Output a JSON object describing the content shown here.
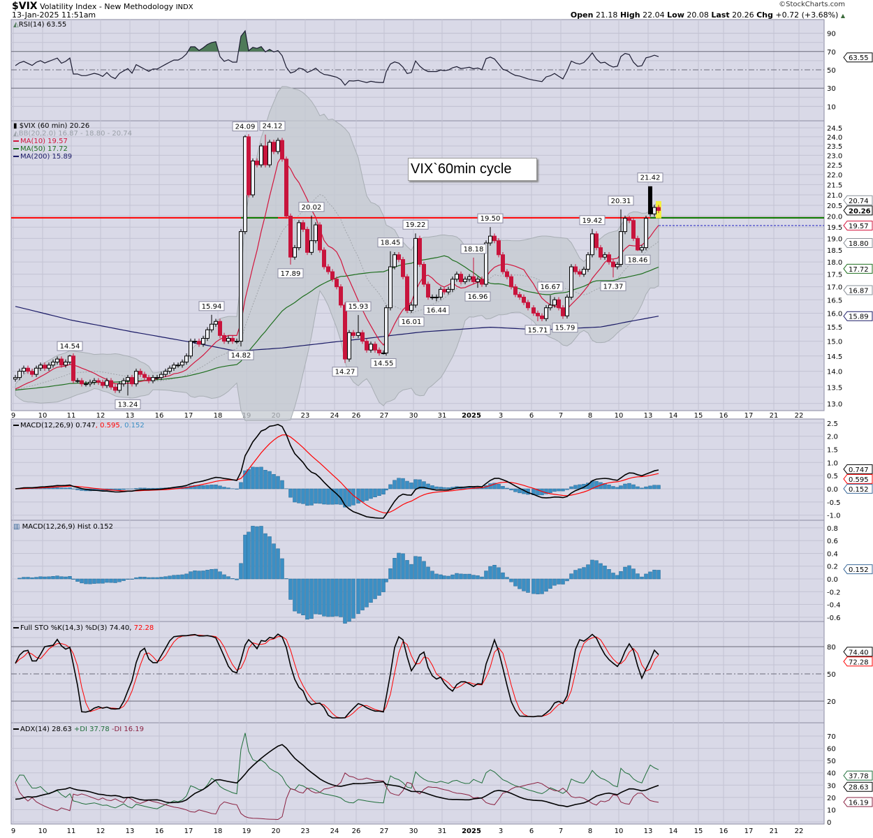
{
  "header": {
    "symbol": "$VIX",
    "name": "Volatility Index - New Methodology",
    "exchange": "INDX",
    "datetime": "13-Jan-2025 11:51am",
    "watermark": "©StockCharts.com",
    "open_label": "Open",
    "open": "21.18",
    "high_label": "High",
    "high": "22.04",
    "low_label": "Low",
    "low": "20.08",
    "last_label": "Last",
    "last": "20.26",
    "chg_label": "Chg",
    "chg": "+0.72 (+3.68%)",
    "chg_icon": "triangle-up-icon"
  },
  "annotation_note": "VIX`60min cycle",
  "legends": {
    "rsi": "RSI(14) 63.55",
    "price": "$VIX (60 min) 20.26",
    "bb": "BB(20,2.0) 16.87 - 18.80 - 20.74",
    "ma10": "MA(10) 19.57",
    "ma50": "MA(50) 17.72",
    "ma200": "MA(200) 15.89",
    "macd_main": "MACD(12,26,9) 0.747",
    "macd_signal": ", 0.595",
    "macd_hist": ", 0.152",
    "hist": "MACD(12,26,9) Hist 0.152",
    "sto_main": "Full STO %K(14,3) %D(3) 74.40,",
    "sto_d": " 72.28",
    "adx": "ADX(14) 28.63",
    "pdi": "+DI 37.78",
    "mdi": "-DI 16.19"
  },
  "colors": {
    "panel_bg": "#d9d9e7",
    "grid": "#c3c3d3",
    "up": "#000000",
    "down": "#c8143c",
    "ma10": "#d2143c",
    "ma50": "#1e6e1e",
    "ma200": "#1a1a66",
    "bb_fill": "#c4cad0",
    "macd": "#000000",
    "signal": "#ff0000",
    "hist": "#3b8fc4",
    "pdi": "#1f6e3a",
    "mdi": "#8a2040",
    "level_line": "#ff0000",
    "level_line_alt": "#008000",
    "rsi_fill": "#4e7a58"
  },
  "axes": {
    "price_ticks": [
      "24.5",
      "24.0",
      "23.5",
      "23.0",
      "22.5",
      "22.0",
      "21.5",
      "21.0",
      "20.5",
      "20.0",
      "19.5",
      "19.0",
      "18.5",
      "18.0",
      "17.5",
      "17.0",
      "16.5",
      "16.0",
      "15.5",
      "15.0",
      "14.5",
      "14.0",
      "13.5",
      "13.0"
    ],
    "rsi_ticks": [
      "90",
      "70",
      "50",
      "30",
      "10"
    ],
    "macd_ticks": [
      "2.5",
      "2.0",
      "1.5",
      "1.0",
      "0.5",
      "0.0",
      "-0.5",
      "-1.0"
    ],
    "hist_ticks": [
      "0.8",
      "0.6",
      "0.4",
      "0.2",
      "0.0",
      "-0.2",
      "-0.4",
      "-0.6"
    ],
    "sto_ticks": [
      "80",
      "50",
      "20"
    ],
    "adx_ticks": [
      "70",
      "60",
      "50",
      "40",
      "30",
      "20",
      "10",
      "0"
    ],
    "date_labels": [
      "9",
      "10",
      "11",
      "12",
      "13",
      "16",
      "17",
      "18",
      "19",
      "20",
      "23",
      "24",
      "26",
      "27",
      "30",
      "31",
      "2025",
      "3",
      "6",
      "7",
      "8",
      "10",
      "13",
      "14",
      "15",
      "16",
      "17",
      "21",
      "22"
    ]
  },
  "value_tags": {
    "rsi": [
      {
        "text": "63.55",
        "value": 63.55,
        "color": "#000000"
      }
    ],
    "price": [
      {
        "text": "20.74",
        "value": 20.74,
        "color": "#8a9098"
      },
      {
        "text": "20.26",
        "value": 20.26,
        "color": "#000000",
        "bold": true
      },
      {
        "text": "19.57",
        "value": 19.57,
        "color": "#d2143c"
      },
      {
        "text": "18.80",
        "value": 18.8,
        "color": "#8a9098"
      },
      {
        "text": "17.72",
        "value": 17.72,
        "color": "#1e6e1e"
      },
      {
        "text": "16.87",
        "value": 16.87,
        "color": "#8a9098"
      },
      {
        "text": "15.89",
        "value": 15.89,
        "color": "#1a1a66"
      }
    ],
    "macd": [
      {
        "text": "0.747",
        "value": 0.747,
        "color": "#000000"
      },
      {
        "text": "0.595",
        "value": 0.595,
        "color": "#ff0000"
      },
      {
        "text": "0.152",
        "value": 0.152,
        "color": "#3b6a9a"
      }
    ],
    "hist": [
      {
        "text": "0.152",
        "value": 0.152,
        "color": "#3b6a9a"
      }
    ],
    "sto": [
      {
        "text": "72.28",
        "value": 72.28,
        "color": "#ff0000"
      },
      {
        "text": "74.40",
        "value": 74.4,
        "color": "#000000"
      }
    ],
    "adx": [
      {
        "text": "37.78",
        "value": 37.78,
        "color": "#1f6e3a"
      },
      {
        "text": "28.63",
        "value": 28.63,
        "color": "#000000"
      },
      {
        "text": "16.19",
        "value": 16.19,
        "color": "#8a2040"
      }
    ]
  },
  "chart_data": {
    "type": "line",
    "title": "$VIX (60 min)",
    "interval": "60 min",
    "ylim": [
      13.0,
      24.5
    ],
    "yscale": "log",
    "days": [
      {
        "label": "Dec 9",
        "bars": 7
      },
      {
        "label": "Dec 10",
        "bars": 7
      },
      {
        "label": "Dec 11",
        "bars": 7
      },
      {
        "label": "Dec 12",
        "bars": 7
      },
      {
        "label": "Dec 13",
        "bars": 7
      },
      {
        "label": "Dec 16",
        "bars": 7
      },
      {
        "label": "Dec 17",
        "bars": 7
      },
      {
        "label": "Dec 18",
        "bars": 7
      },
      {
        "label": "Dec 19",
        "bars": 7
      },
      {
        "label": "Dec 20",
        "bars": 7
      },
      {
        "label": "Dec 23",
        "bars": 7
      },
      {
        "label": "Dec 24",
        "bars": 5
      },
      {
        "label": "Dec 26",
        "bars": 7
      },
      {
        "label": "Dec 27",
        "bars": 7
      },
      {
        "label": "Dec 30",
        "bars": 7
      },
      {
        "label": "Dec 31",
        "bars": 7
      },
      {
        "label": "Jan 2",
        "bars": 7
      },
      {
        "label": "Jan 3",
        "bars": 7
      },
      {
        "label": "Jan 6",
        "bars": 7
      },
      {
        "label": "Jan 7",
        "bars": 7
      },
      {
        "label": "Jan 8",
        "bars": 7
      },
      {
        "label": "Jan 10",
        "bars": 7
      },
      {
        "label": "Jan 13",
        "bars": 3
      }
    ],
    "closes": [
      13.8,
      14.0,
      14.1,
      14.0,
      13.9,
      14.1,
      14.2,
      14.1,
      14.2,
      14.3,
      14.4,
      14.2,
      14.3,
      14.5,
      13.7,
      13.7,
      13.6,
      13.6,
      13.65,
      13.7,
      13.65,
      13.55,
      13.7,
      13.5,
      13.4,
      13.6,
      13.7,
      13.8,
      13.6,
      14.0,
      13.9,
      13.8,
      13.7,
      13.8,
      13.8,
      13.9,
      14.0,
      14.1,
      14.2,
      14.2,
      14.3,
      14.5,
      15.0,
      15.0,
      14.9,
      15.1,
      15.4,
      15.6,
      15.7,
      15.2,
      15.0,
      15.1,
      15.0,
      15.0,
      19.3,
      24.0,
      21.0,
      22.7,
      22.5,
      23.5,
      22.5,
      23.7,
      23.2,
      23.8,
      22.8,
      20.0,
      18.2,
      18.6,
      19.7,
      19.4,
      18.4,
      18.9,
      19.6,
      18.5,
      17.8,
      17.6,
      17.3,
      17.0,
      16.3,
      14.4,
      15.3,
      15.2,
      15.3,
      15.0,
      14.7,
      14.9,
      14.7,
      14.6,
      14.6,
      16.2,
      17.8,
      18.3,
      18.1,
      17.4,
      16.1,
      16.3,
      19.0,
      17.9,
      17.1,
      16.6,
      16.6,
      16.6,
      16.9,
      16.8,
      16.9,
      17.3,
      17.5,
      17.2,
      17.3,
      17.4,
      17.2,
      17.3,
      17.1,
      18.8,
      19.1,
      18.9,
      18.3,
      17.6,
      17.4,
      17.0,
      16.7,
      16.6,
      16.4,
      16.2,
      16.0,
      15.9,
      15.8,
      16.2,
      16.3,
      16.5,
      16.2,
      15.9,
      16.6,
      17.8,
      17.6,
      17.5,
      17.7,
      18.3,
      19.2,
      18.6,
      18.2,
      18.3,
      18.0,
      17.8,
      17.9,
      19.3,
      19.9,
      19.8,
      19.0,
      18.5,
      18.6,
      19.9,
      20.1,
      20.4,
      20.26
    ],
    "open_overrides": {
      "152": 21.4
    },
    "point_labels": [
      {
        "i": 13,
        "v": 14.54,
        "text": "14.54",
        "pos": "above"
      },
      {
        "i": 27,
        "v": 13.24,
        "text": "13.24",
        "pos": "below"
      },
      {
        "i": 47,
        "v": 15.94,
        "text": "15.94",
        "pos": "above"
      },
      {
        "i": 54,
        "v": 14.82,
        "text": "14.82",
        "pos": "below"
      },
      {
        "i": 55,
        "v": 24.09,
        "text": "24.09",
        "pos": "above"
      },
      {
        "i": 60,
        "v": 24.12,
        "text": "24.12",
        "pos": "above"
      },
      {
        "i": 66,
        "v": 17.89,
        "text": "17.89",
        "pos": "below"
      },
      {
        "i": 71,
        "v": 20.02,
        "text": "20.02",
        "pos": "above"
      },
      {
        "i": 79,
        "v": 14.27,
        "text": "14.27",
        "pos": "below"
      },
      {
        "i": 82,
        "v": 15.93,
        "text": "15.93",
        "pos": "above"
      },
      {
        "i": 88,
        "v": 14.55,
        "text": "14.55",
        "pos": "below"
      },
      {
        "i": 90,
        "v": 18.45,
        "text": "18.45",
        "pos": "above"
      },
      {
        "i": 95,
        "v": 16.01,
        "text": "16.01",
        "pos": "below"
      },
      {
        "i": 96,
        "v": 19.22,
        "text": "19.22",
        "pos": "above"
      },
      {
        "i": 101,
        "v": 16.44,
        "text": "16.44",
        "pos": "below"
      },
      {
        "i": 110,
        "v": 18.18,
        "text": "18.18",
        "pos": "above"
      },
      {
        "i": 111,
        "v": 16.96,
        "text": "16.96",
        "pos": "below"
      },
      {
        "i": 114,
        "v": 19.5,
        "text": "19.50",
        "pos": "above"
      },
      {
        "i": 125,
        "v": 15.71,
        "text": "15.71",
        "pos": "below"
      },
      {
        "i": 128,
        "v": 16.67,
        "text": "16.67",
        "pos": "above"
      },
      {
        "i": 131,
        "v": 15.79,
        "text": "15.79",
        "pos": "below"
      },
      {
        "i": 138,
        "v": 19.42,
        "text": "19.42",
        "pos": "above"
      },
      {
        "i": 143,
        "v": 17.37,
        "text": "17.37",
        "pos": "below"
      },
      {
        "i": 145,
        "v": 20.31,
        "text": "20.31",
        "pos": "above"
      },
      {
        "i": 149,
        "v": 18.46,
        "text": "18.46",
        "pos": "below"
      },
      {
        "i": 152,
        "v": 21.42,
        "text": "21.42",
        "pos": "above"
      }
    ],
    "ma200": [
      [
        0,
        16.25
      ],
      [
        13,
        15.76
      ],
      [
        28,
        15.33
      ],
      [
        42,
        14.97
      ],
      [
        53,
        14.66
      ],
      [
        64,
        14.77
      ],
      [
        78,
        15.0
      ],
      [
        98,
        15.33
      ],
      [
        114,
        15.49
      ],
      [
        126,
        15.4
      ],
      [
        140,
        15.5
      ],
      [
        154,
        15.89
      ]
    ],
    "horizontal_line": {
      "value": 19.92,
      "alt_color_ranges": [
        [
          54,
          63
        ],
        [
          152,
          154
        ]
      ]
    },
    "ma10_projection": 19.57,
    "indicators": {
      "rsi": {
        "period": 14,
        "value": 63.55,
        "levels": [
          70,
          50,
          30
        ]
      },
      "macd": {
        "fast": 12,
        "slow": 26,
        "signal": 9,
        "macd": 0.747,
        "signal_value": 0.595,
        "hist": 0.152
      },
      "sto": {
        "k": 74.4,
        "d": 72.28,
        "levels": [
          80,
          50,
          20
        ]
      },
      "adx": {
        "adx": 28.63,
        "pdi": 37.78,
        "mdi": 16.19
      }
    }
  }
}
